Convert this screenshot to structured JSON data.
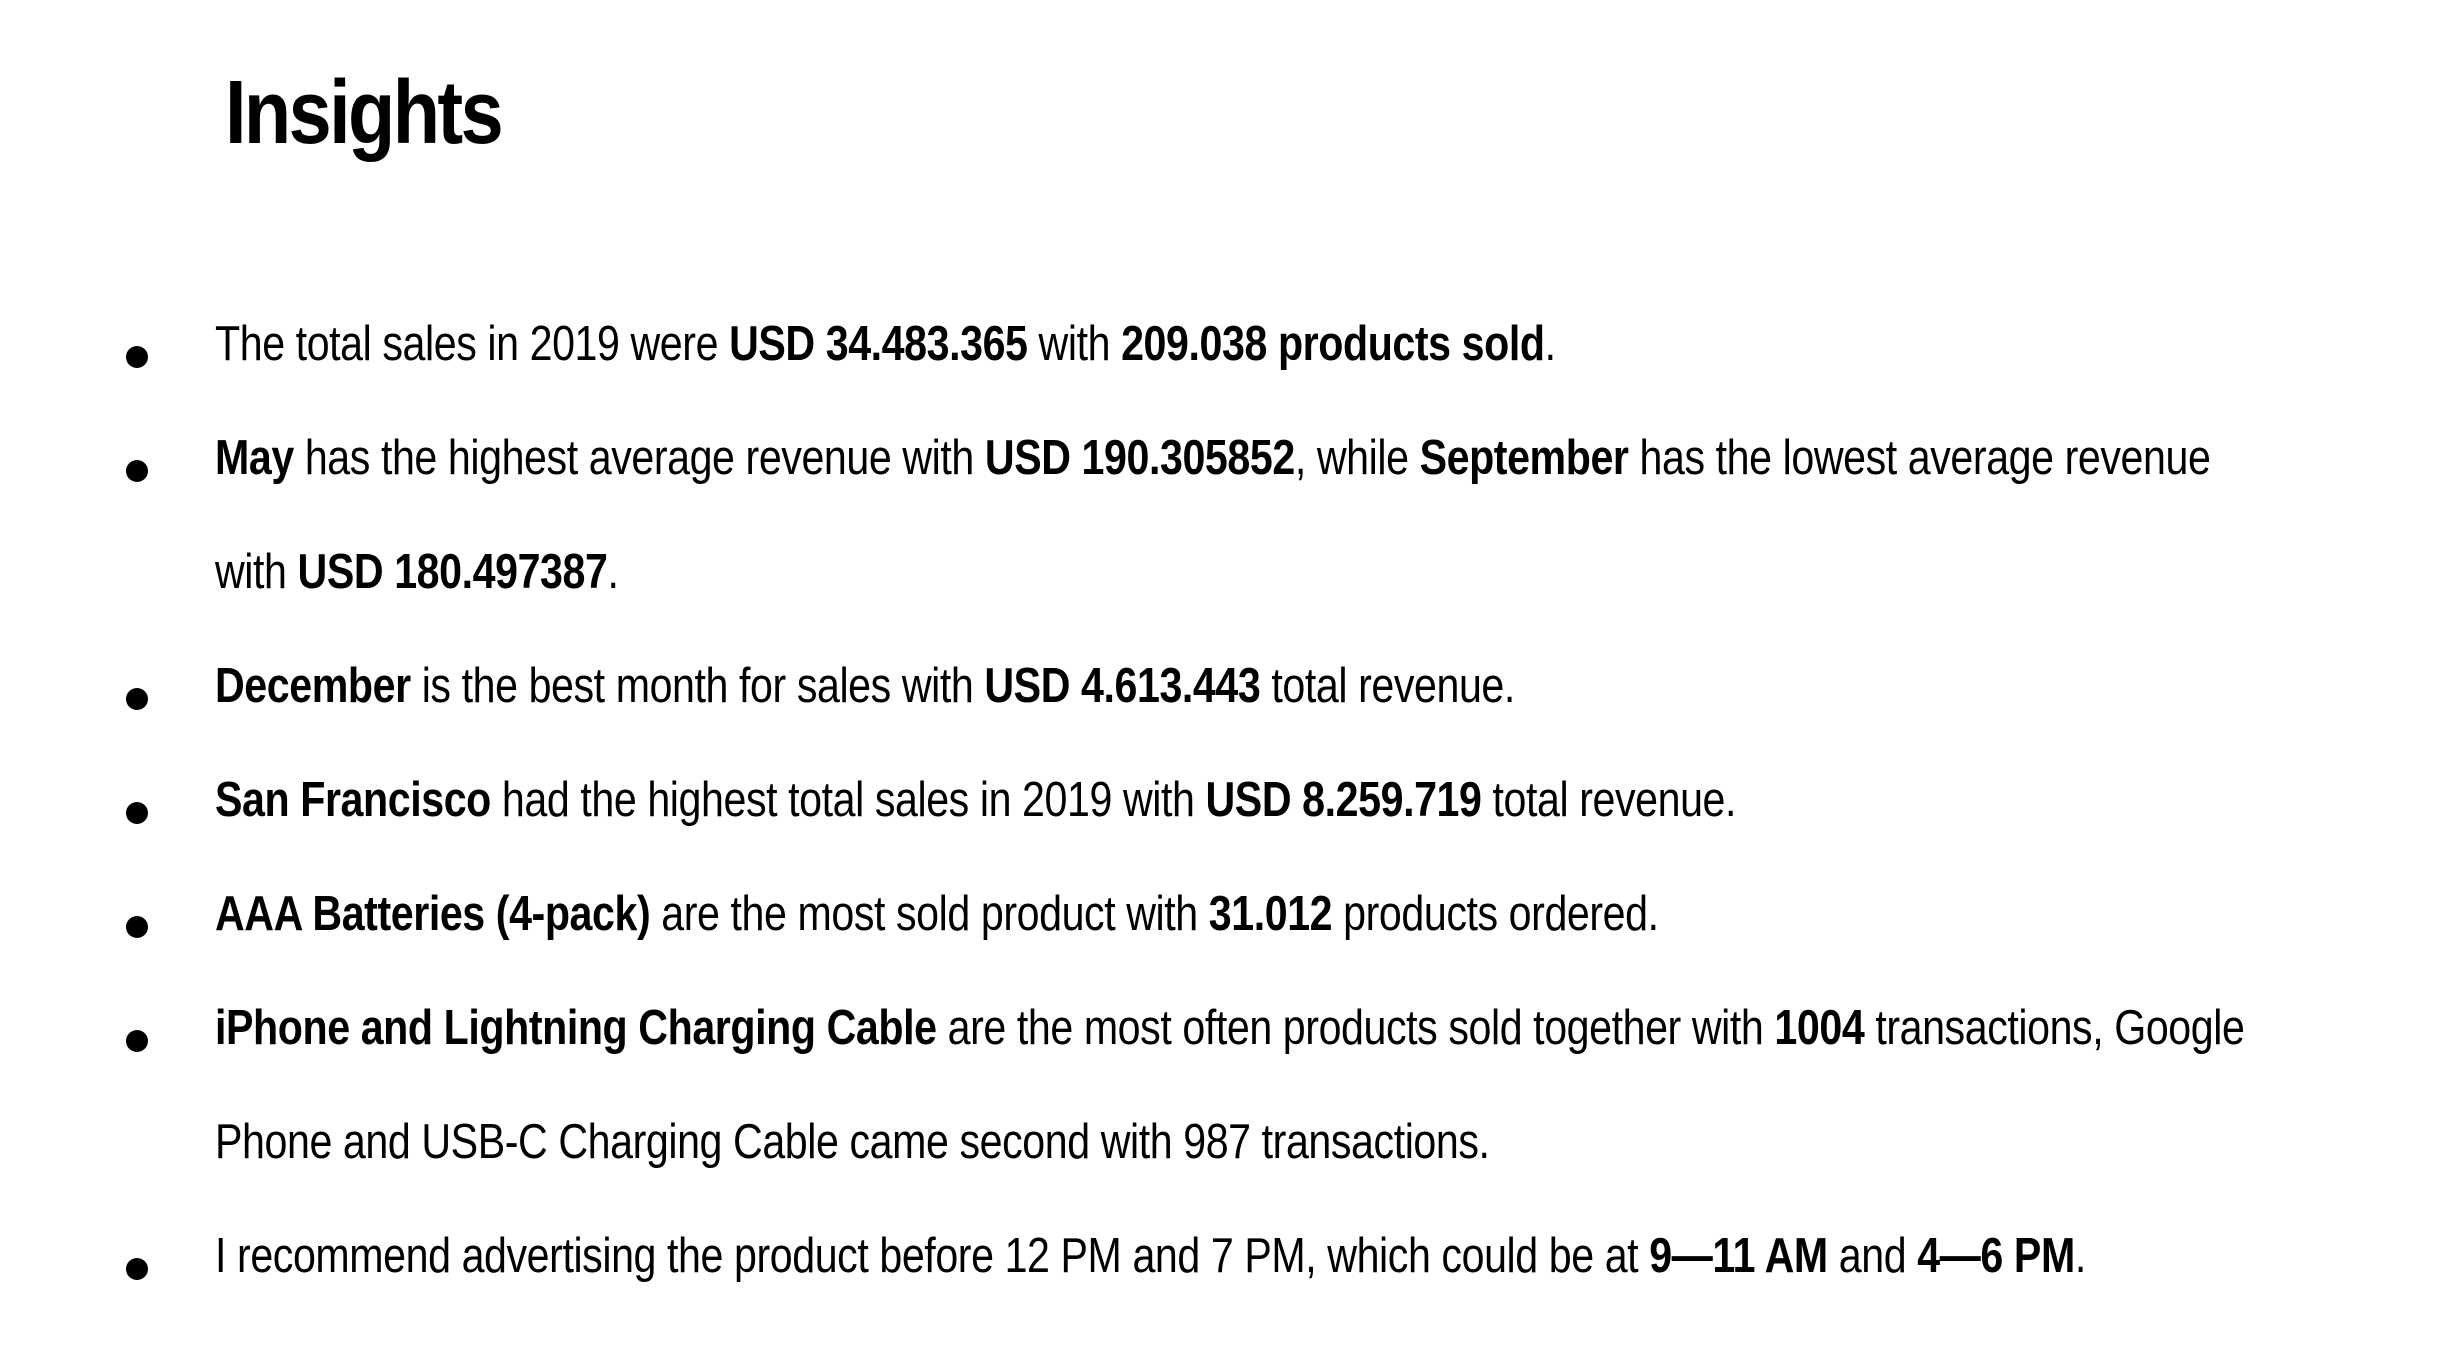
{
  "slide": {
    "title": "Insights",
    "bullets": [
      {
        "lines": [
          [
            {
              "t": "The total sales in 2019 were ",
              "b": false
            },
            {
              "t": "USD 34.483.365",
              "b": true
            },
            {
              "t": " with ",
              "b": false
            },
            {
              "t": "209.038 products sold",
              "b": true
            },
            {
              "t": ".",
              "b": false
            }
          ]
        ]
      },
      {
        "lines": [
          [
            {
              "t": "May",
              "b": true
            },
            {
              "t": " has the highest average revenue with ",
              "b": false
            },
            {
              "t": "USD 190.305852",
              "b": true
            },
            {
              "t": ", while ",
              "b": false
            },
            {
              "t": "September",
              "b": true
            },
            {
              "t": " has the lowest average revenue",
              "b": false
            }
          ],
          [
            {
              "t": "with ",
              "b": false
            },
            {
              "t": "USD 180.497387",
              "b": true
            },
            {
              "t": ".",
              "b": false
            }
          ]
        ]
      },
      {
        "lines": [
          [
            {
              "t": "December",
              "b": true
            },
            {
              "t": " is the best month for sales with ",
              "b": false
            },
            {
              "t": "USD 4.613.443",
              "b": true
            },
            {
              "t": " total revenue.",
              "b": false
            }
          ]
        ]
      },
      {
        "lines": [
          [
            {
              "t": "San Francisco",
              "b": true
            },
            {
              "t": " had the highest total sales in 2019 with ",
              "b": false
            },
            {
              "t": "USD 8.259.719",
              "b": true
            },
            {
              "t": " total revenue.",
              "b": false
            }
          ]
        ]
      },
      {
        "lines": [
          [
            {
              "t": "AAA Batteries (4-pack)",
              "b": true
            },
            {
              "t": " are the most sold product with ",
              "b": false
            },
            {
              "t": "31.012",
              "b": true
            },
            {
              "t": " products ordered.",
              "b": false
            }
          ]
        ]
      },
      {
        "lines": [
          [
            {
              "t": "iPhone and Lightning Charging Cable",
              "b": true
            },
            {
              "t": " are the most often products sold together with ",
              "b": false
            },
            {
              "t": "1004",
              "b": true
            },
            {
              "t": " transactions, Google",
              "b": false
            }
          ],
          [
            {
              "t": "Phone and USB-C Charging Cable came second with 987 transactions.",
              "b": false
            }
          ]
        ]
      },
      {
        "lines": [
          [
            {
              "t": "I recommend advertising the product before 12 PM and 7 PM, which could be at ",
              "b": false
            },
            {
              "t": "9—11 AM",
              "b": true
            },
            {
              "t": " and ",
              "b": false
            },
            {
              "t": "4—6 PM",
              "b": true
            },
            {
              "t": ".",
              "b": false
            }
          ]
        ]
      }
    ]
  }
}
